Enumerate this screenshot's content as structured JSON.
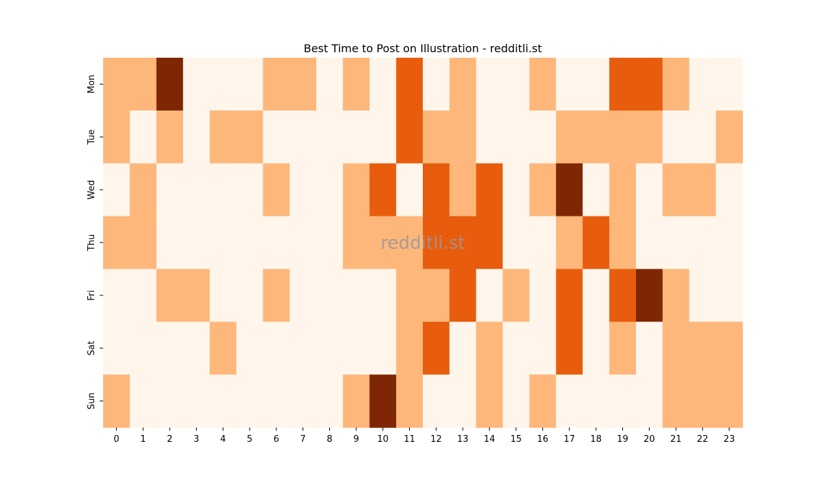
{
  "chart_data": {
    "type": "heatmap",
    "title": "Best Time to Post on Illustration - redditli.st",
    "watermark": "redditli.st",
    "xlabel": "",
    "ylabel": "",
    "x_categories": [
      "0",
      "1",
      "2",
      "3",
      "4",
      "5",
      "6",
      "7",
      "8",
      "9",
      "10",
      "11",
      "12",
      "13",
      "14",
      "15",
      "16",
      "17",
      "18",
      "19",
      "20",
      "21",
      "22",
      "23"
    ],
    "y_categories": [
      "Mon",
      "Tue",
      "Wed",
      "Thu",
      "Fri",
      "Sat",
      "Sun"
    ],
    "value_range": [
      0,
      3
    ],
    "colormap": [
      "#fff5eb",
      "#fdb77a",
      "#e85d0d",
      "#7f2704"
    ],
    "values": [
      [
        1,
        1,
        3,
        0,
        0,
        0,
        1,
        1,
        0,
        1,
        0,
        2,
        0,
        1,
        0,
        0,
        1,
        0,
        0,
        2,
        2,
        1,
        0,
        0
      ],
      [
        1,
        0,
        1,
        0,
        1,
        1,
        0,
        0,
        0,
        0,
        0,
        2,
        1,
        1,
        0,
        0,
        0,
        1,
        1,
        1,
        1,
        0,
        0,
        1
      ],
      [
        0,
        1,
        0,
        0,
        0,
        0,
        1,
        0,
        0,
        1,
        2,
        0,
        2,
        1,
        2,
        0,
        1,
        3,
        0,
        1,
        0,
        1,
        1,
        0
      ],
      [
        1,
        1,
        0,
        0,
        0,
        0,
        0,
        0,
        0,
        1,
        1,
        1,
        2,
        2,
        2,
        0,
        0,
        1,
        2,
        1,
        0,
        0,
        0,
        0
      ],
      [
        0,
        0,
        1,
        1,
        0,
        0,
        1,
        0,
        0,
        0,
        0,
        1,
        1,
        2,
        0,
        1,
        0,
        2,
        0,
        2,
        3,
        1,
        0,
        0
      ],
      [
        0,
        0,
        0,
        0,
        1,
        0,
        0,
        0,
        0,
        0,
        0,
        1,
        2,
        0,
        1,
        0,
        0,
        2,
        0,
        1,
        0,
        1,
        1,
        1
      ],
      [
        1,
        0,
        0,
        0,
        0,
        0,
        0,
        0,
        0,
        1,
        3,
        1,
        0,
        0,
        1,
        0,
        1,
        0,
        0,
        0,
        0,
        1,
        1,
        1
      ]
    ]
  }
}
